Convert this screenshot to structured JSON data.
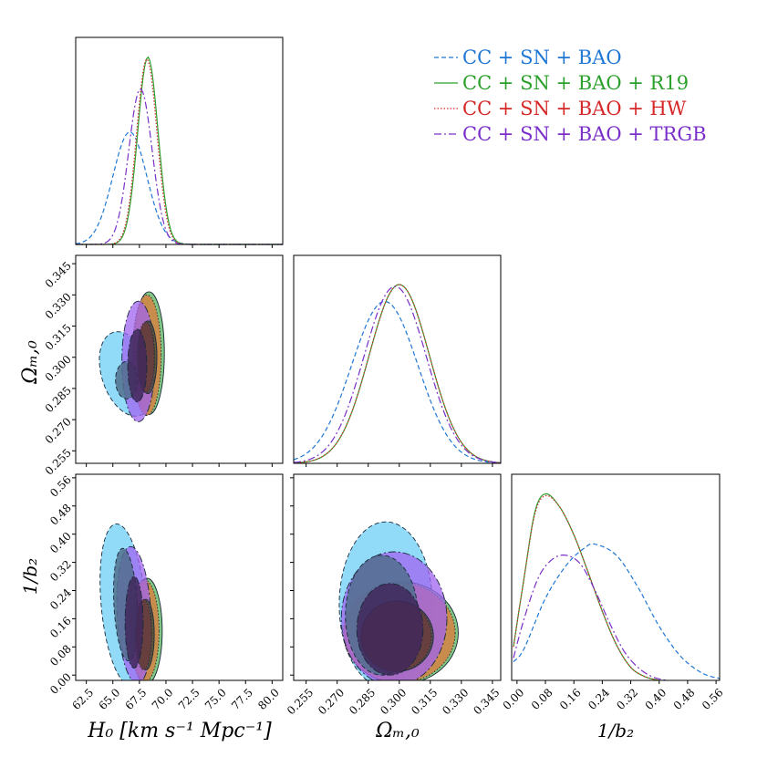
{
  "chart_data": {
    "type": "corner",
    "parameters": {
      "H0": {
        "ticks": [
          62.5,
          65.0,
          67.5,
          70.0,
          72.5,
          75.0,
          77.5,
          80.0
        ],
        "range": [
          61.5,
          81.0
        ]
      },
      "Om": {
        "ticks": [
          0.255,
          0.27,
          0.285,
          0.3,
          0.315,
          0.33,
          0.345
        ],
        "range": [
          0.249,
          0.349
        ]
      },
      "b2": {
        "ticks": [
          0.0,
          0.08,
          0.16,
          0.24,
          0.32,
          0.4,
          0.48,
          0.56
        ],
        "range": [
          -0.015,
          0.57
        ]
      }
    },
    "tick_labels": {
      "H0": [
        "62.5",
        "65.0",
        "67.5",
        "70.0",
        "72.5",
        "75.0",
        "77.5",
        "80.0"
      ],
      "Om": [
        "0.255",
        "0.270",
        "0.285",
        "0.300",
        "0.315",
        "0.330",
        "0.345"
      ],
      "b2": [
        "0.00",
        "0.08",
        "0.16",
        "0.24",
        "0.32",
        "0.40",
        "0.48",
        "0.56"
      ]
    },
    "axis_labels": {
      "H0": "H₀ [km s⁻¹ Mpc⁻¹]",
      "Om": "Ωₘ,₀",
      "b2": "1/b₂"
    },
    "legend_position": "top-right",
    "series": [
      {
        "name": "CC + SN + BAO",
        "color": "#1f77d4",
        "fill_outer": "#6ccdf5",
        "fill_inner": "#51708e",
        "dash": "5,3",
        "H0": {
          "mean": 66.6,
          "sd": 1.6
        },
        "Om": {
          "mean": 0.293,
          "sd": 0.016
        },
        "b2_points": [
          [
            -0.01,
            0.1
          ],
          [
            0.02,
            0.17
          ],
          [
            0.08,
            0.44
          ],
          [
            0.14,
            0.62
          ],
          [
            0.19,
            0.71
          ],
          [
            0.22,
            0.73
          ],
          [
            0.28,
            0.67
          ],
          [
            0.34,
            0.5
          ],
          [
            0.4,
            0.29
          ],
          [
            0.46,
            0.13
          ],
          [
            0.52,
            0.04
          ],
          [
            0.57,
            0.01
          ]
        ],
        "ellipses": {
          "H0_Om": [
            {
              "c": [
                66.3,
                0.292
              ],
              "r": [
                2.35,
                0.021
              ],
              "rot": 1.2,
              "level": "outer"
            },
            {
              "c": [
                66.3,
                0.289
              ],
              "r": [
                1.05,
                0.009
              ],
              "rot": 0,
              "level": "inner"
            }
          ],
          "H0_b2": [
            {
              "c": [
                66.0,
                0.2
              ],
              "r": [
                2.1,
                0.23
              ],
              "rot": 0.35,
              "level": "outer"
            },
            {
              "c": [
                66.2,
                0.2
              ],
              "r": [
                1.1,
                0.16
              ],
              "rot": 0.2,
              "level": "inner"
            }
          ],
          "Om_b2": [
            {
              "c": [
                0.2935,
                0.2
              ],
              "r": [
                0.0225,
                0.235
              ],
              "rot": 0,
              "level": "outer"
            },
            {
              "c": [
                0.2915,
                0.17
              ],
              "r": [
                0.0175,
                0.17
              ],
              "rot": 0,
              "level": "inner"
            }
          ]
        }
      },
      {
        "name": "CC + SN + BAO + R19",
        "color": "#2ca02c",
        "fill_outer": "#57b35a",
        "fill_inner": "#4a4a3a",
        "dash": "",
        "H0": {
          "mean": 68.3,
          "sd": 0.95
        },
        "Om": {
          "mean": 0.3,
          "sd": 0.0145
        },
        "b2_points": [
          [
            -0.01,
            0.18
          ],
          [
            0.02,
            0.55
          ],
          [
            0.05,
            0.9
          ],
          [
            0.08,
            1.0
          ],
          [
            0.12,
            0.93
          ],
          [
            0.16,
            0.78
          ],
          [
            0.2,
            0.58
          ],
          [
            0.24,
            0.37
          ],
          [
            0.28,
            0.19
          ],
          [
            0.32,
            0.07
          ],
          [
            0.36,
            0.02
          ],
          [
            0.4,
            0.0
          ]
        ],
        "ellipses": {
          "H0_Om": [
            {
              "c": [
                68.4,
                0.302
              ],
              "r": [
                1.45,
                0.0295
              ],
              "rot": 0,
              "level": "outer"
            },
            {
              "c": [
                68.3,
                0.3
              ],
              "r": [
                0.85,
                0.0175
              ],
              "rot": 0,
              "level": "inner"
            }
          ],
          "H0_b2": [
            {
              "c": [
                68.2,
                0.125
              ],
              "r": [
                1.45,
                0.15
              ],
              "rot": 0,
              "level": "outer"
            },
            {
              "c": [
                68.1,
                0.115
              ],
              "r": [
                0.8,
                0.1
              ],
              "rot": 0,
              "level": "inner"
            }
          ],
          "Om_b2": [
            {
              "c": [
                0.301,
                0.12
              ],
              "r": [
                0.0275,
                0.145
              ],
              "rot": 0,
              "level": "outer"
            },
            {
              "c": [
                0.299,
                0.11
              ],
              "r": [
                0.0175,
                0.1
              ],
              "rot": 0,
              "level": "inner"
            }
          ]
        }
      },
      {
        "name": "CC + SN + BAO + HW",
        "color": "#d62728",
        "fill_outer": "#e0783a",
        "fill_inner": "#6b3c3c",
        "dash": "1.5,2",
        "H0": {
          "mean": 68.2,
          "sd": 0.95
        },
        "Om": {
          "mean": 0.3,
          "sd": 0.0145
        },
        "b2_points": [
          [
            -0.01,
            0.18
          ],
          [
            0.02,
            0.55
          ],
          [
            0.05,
            0.89
          ],
          [
            0.08,
            0.99
          ],
          [
            0.12,
            0.93
          ],
          [
            0.16,
            0.78
          ],
          [
            0.2,
            0.58
          ],
          [
            0.24,
            0.37
          ],
          [
            0.28,
            0.19
          ],
          [
            0.32,
            0.07
          ],
          [
            0.36,
            0.02
          ],
          [
            0.4,
            0.0
          ]
        ],
        "ellipses": {
          "H0_Om": [
            {
              "c": [
                68.2,
                0.301
              ],
              "r": [
                1.35,
                0.029
              ],
              "rot": 0,
              "level": "outer"
            },
            {
              "c": [
                68.1,
                0.3
              ],
              "r": [
                0.8,
                0.017
              ],
              "rot": 0,
              "level": "inner"
            }
          ],
          "H0_b2": [
            {
              "c": [
                68.0,
                0.125
              ],
              "r": [
                1.35,
                0.145
              ],
              "rot": 0,
              "level": "outer"
            },
            {
              "c": [
                67.9,
                0.115
              ],
              "r": [
                0.75,
                0.1
              ],
              "rot": 0,
              "level": "inner"
            }
          ],
          "Om_b2": [
            {
              "c": [
                0.3,
                0.12
              ],
              "r": [
                0.027,
                0.142
              ],
              "rot": 0,
              "level": "outer"
            },
            {
              "c": [
                0.2985,
                0.11
              ],
              "r": [
                0.017,
                0.1
              ],
              "rot": 0,
              "level": "inner"
            }
          ]
        }
      },
      {
        "name": "CC + SN + BAO + TRGB",
        "color": "#7b2fc9",
        "fill_outer": "#a064f0",
        "fill_inner": "#40285a",
        "dash": "8,3,2,3",
        "H0": {
          "mean": 67.6,
          "sd": 1.1
        },
        "Om": {
          "mean": 0.298,
          "sd": 0.015
        },
        "b2_points": [
          [
            -0.01,
            0.12
          ],
          [
            0.02,
            0.33
          ],
          [
            0.06,
            0.55
          ],
          [
            0.1,
            0.65
          ],
          [
            0.14,
            0.67
          ],
          [
            0.18,
            0.62
          ],
          [
            0.22,
            0.48
          ],
          [
            0.26,
            0.31
          ],
          [
            0.3,
            0.16
          ],
          [
            0.34,
            0.07
          ],
          [
            0.38,
            0.02
          ],
          [
            0.42,
            0.0
          ]
        ],
        "ellipses": {
          "H0_Om": [
            {
              "c": [
                67.4,
                0.298
              ],
              "r": [
                1.55,
                0.029
              ],
              "rot": 0,
              "level": "outer"
            },
            {
              "c": [
                67.3,
                0.296
              ],
              "r": [
                0.9,
                0.0175
              ],
              "rot": 0,
              "level": "inner"
            }
          ],
          "H0_b2": [
            {
              "c": [
                67.0,
                0.17
              ],
              "r": [
                1.6,
                0.195
              ],
              "rot": 0.2,
              "level": "outer"
            },
            {
              "c": [
                67.0,
                0.15
              ],
              "r": [
                0.85,
                0.13
              ],
              "rot": 0,
              "level": "inner"
            }
          ],
          "Om_b2": [
            {
              "c": [
                0.2975,
                0.16
              ],
              "r": [
                0.0255,
                0.19
              ],
              "rot": 0,
              "level": "outer"
            },
            {
              "c": [
                0.2955,
                0.13
              ],
              "r": [
                0.016,
                0.13
              ],
              "rot": 0,
              "level": "inner"
            }
          ]
        }
      }
    ]
  }
}
